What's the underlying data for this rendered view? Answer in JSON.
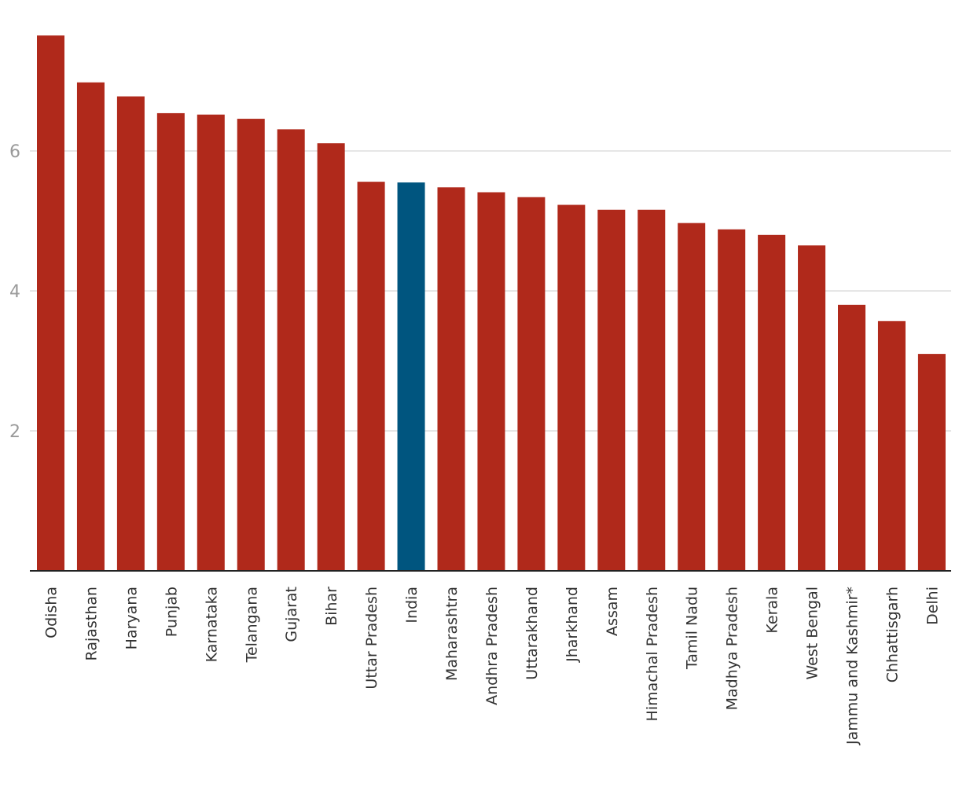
{
  "chart_data": {
    "type": "bar",
    "title": "",
    "xlabel": "",
    "ylabel": "",
    "ylim": [
      0,
      7.8
    ],
    "yticks": [
      2,
      4,
      6
    ],
    "grid": true,
    "highlight_category": "India",
    "colors": {
      "bar": "#b0291b",
      "highlight": "#00557f",
      "grid": "#dddddd",
      "axis": "#222222"
    },
    "categories": [
      "Odisha",
      "Rajasthan",
      "Haryana",
      "Punjab",
      "Karnataka",
      "Telangana",
      "Gujarat",
      "Bihar",
      "Uttar Pradesh",
      "India",
      "Maharashtra",
      "Andhra Pradesh",
      "Uttarakhand",
      "Jharkhand",
      "Assam",
      "Himachal Pradesh",
      "Tamil Nadu",
      "Madhya Pradesh",
      "Kerala",
      "West Bengal",
      "Jammu and Kashmir*",
      "Chhattisgarh",
      "Delhi"
    ],
    "values": [
      7.65,
      6.98,
      6.78,
      6.54,
      6.52,
      6.46,
      6.31,
      6.11,
      5.56,
      5.55,
      5.48,
      5.41,
      5.34,
      5.23,
      5.16,
      5.16,
      4.97,
      4.88,
      4.8,
      4.65,
      3.8,
      3.57,
      3.1
    ]
  }
}
